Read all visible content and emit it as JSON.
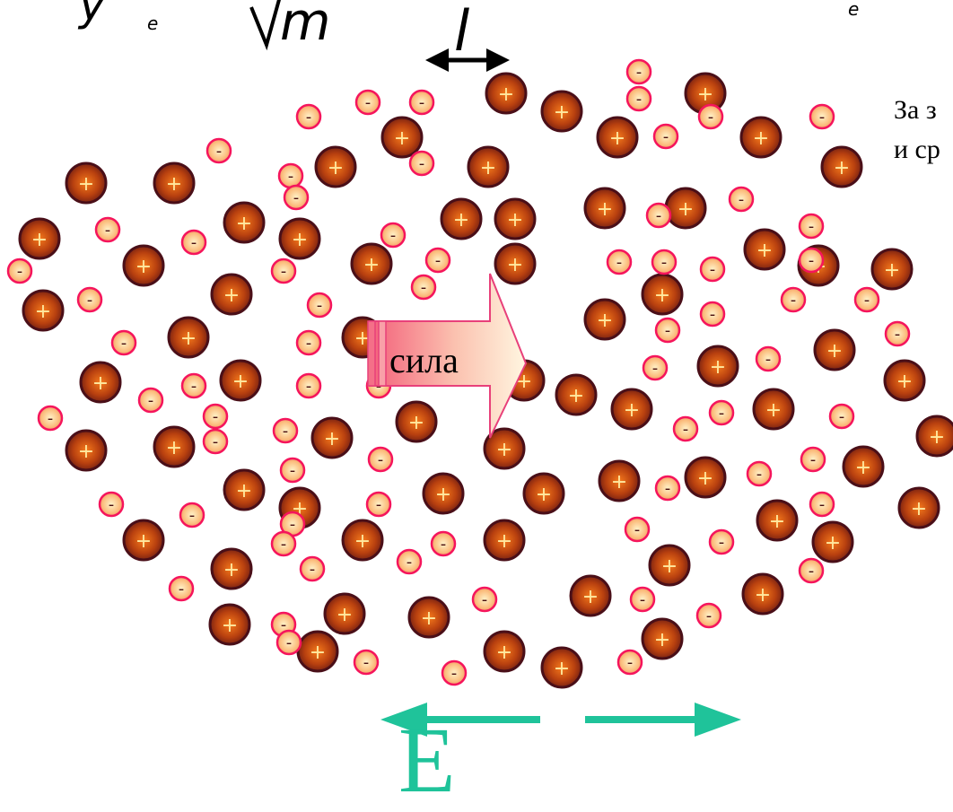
{
  "formula": {
    "left_fragment": "y",
    "sub_left": "e",
    "root_var": "m",
    "length_var": "l",
    "sub_right": "e"
  },
  "side_text": {
    "line1": "За з",
    "line2": "и ср"
  },
  "force_label": "сила",
  "field_label": "E",
  "particle_signs": {
    "positive": "+",
    "negative": "-"
  },
  "colors": {
    "ion_fill": "#8b2a0a",
    "ion_edge": "#4a0f18",
    "electron_fill": "#f6a56a",
    "electron_edge": "#f5155c",
    "field_arrow": "#1fc39a",
    "force_arrow_fill": "#f79a9e",
    "force_arrow_edge": "#e8407a"
  },
  "icons": {
    "force_arrow": "block-arrow-right",
    "double_arrow": "double-arrow-horizontal",
    "field_arrow_left": "arrow-left",
    "field_arrow_right": "arrow-right"
  }
}
